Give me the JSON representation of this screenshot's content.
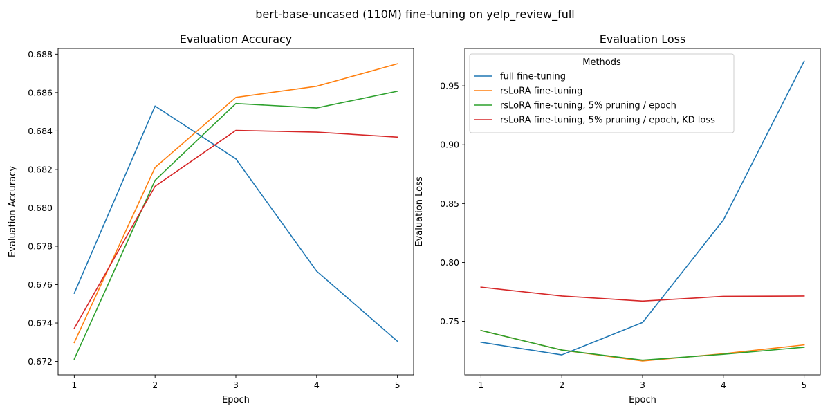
{
  "figure": {
    "suptitle": "bert-base-uncased (110M) fine-tuning on yelp_review_full"
  },
  "chart_data": [
    {
      "type": "line",
      "title": "Evaluation Accuracy",
      "xlabel": "Epoch",
      "ylabel": "Evaluation Accuracy",
      "x": [
        1,
        2,
        3,
        4,
        5
      ],
      "xticks": [
        "1",
        "2",
        "3",
        "4",
        "5"
      ],
      "xlim": [
        0.8,
        5.2
      ],
      "ylim": [
        0.6713,
        0.6883
      ],
      "yticks": [
        "0.672",
        "0.674",
        "0.676",
        "0.678",
        "0.680",
        "0.682",
        "0.684",
        "0.686",
        "0.688"
      ],
      "grid": false,
      "legend": null,
      "series": [
        {
          "name": "full fine-tuning",
          "color": "#1f77b4",
          "values": [
            0.67555,
            0.6853,
            0.68255,
            0.6767,
            0.67305
          ]
        },
        {
          "name": "rsLoRA fine-tuning",
          "color": "#ff7f0e",
          "values": [
            0.67298,
            0.6821,
            0.68575,
            0.68633,
            0.6875
          ]
        },
        {
          "name": "rsLoRA fine-tuning, 5% pruning / epoch",
          "color": "#2ca02c",
          "values": [
            0.67212,
            0.68143,
            0.68543,
            0.6852,
            0.68607
          ]
        },
        {
          "name": "rsLoRA fine-tuning, 5% pruning / epoch, KD loss",
          "color": "#d62728",
          "values": [
            0.67372,
            0.68112,
            0.68403,
            0.68394,
            0.68368
          ]
        }
      ]
    },
    {
      "type": "line",
      "title": "Evaluation Loss",
      "xlabel": "Epoch",
      "ylabel": "Evaluation Loss",
      "x": [
        1,
        2,
        3,
        4,
        5
      ],
      "xticks": [
        "1",
        "2",
        "3",
        "4",
        "5"
      ],
      "xlim": [
        0.8,
        5.2
      ],
      "ylim": [
        0.7045,
        0.9818
      ],
      "yticks": [
        "0.75",
        "0.80",
        "0.85",
        "0.90",
        "0.95"
      ],
      "grid": false,
      "legend": {
        "title": "Methods",
        "placement": "upper-left"
      },
      "series": [
        {
          "name": "full fine-tuning",
          "color": "#1f77b4",
          "values": [
            0.7322,
            0.7215,
            0.749,
            0.836,
            0.971
          ]
        },
        {
          "name": "rsLoRA fine-tuning",
          "color": "#ff7f0e",
          "values": [
            0.7422,
            0.7256,
            0.7163,
            0.7225,
            0.73
          ]
        },
        {
          "name": "rsLoRA fine-tuning, 5% pruning / epoch",
          "color": "#2ca02c",
          "values": [
            0.7422,
            0.7256,
            0.717,
            0.722,
            0.728
          ]
        },
        {
          "name": "rsLoRA fine-tuning, 5% pruning / epoch, KD loss",
          "color": "#d62728",
          "values": [
            0.779,
            0.7715,
            0.7672,
            0.7712,
            0.7715
          ]
        }
      ]
    }
  ]
}
